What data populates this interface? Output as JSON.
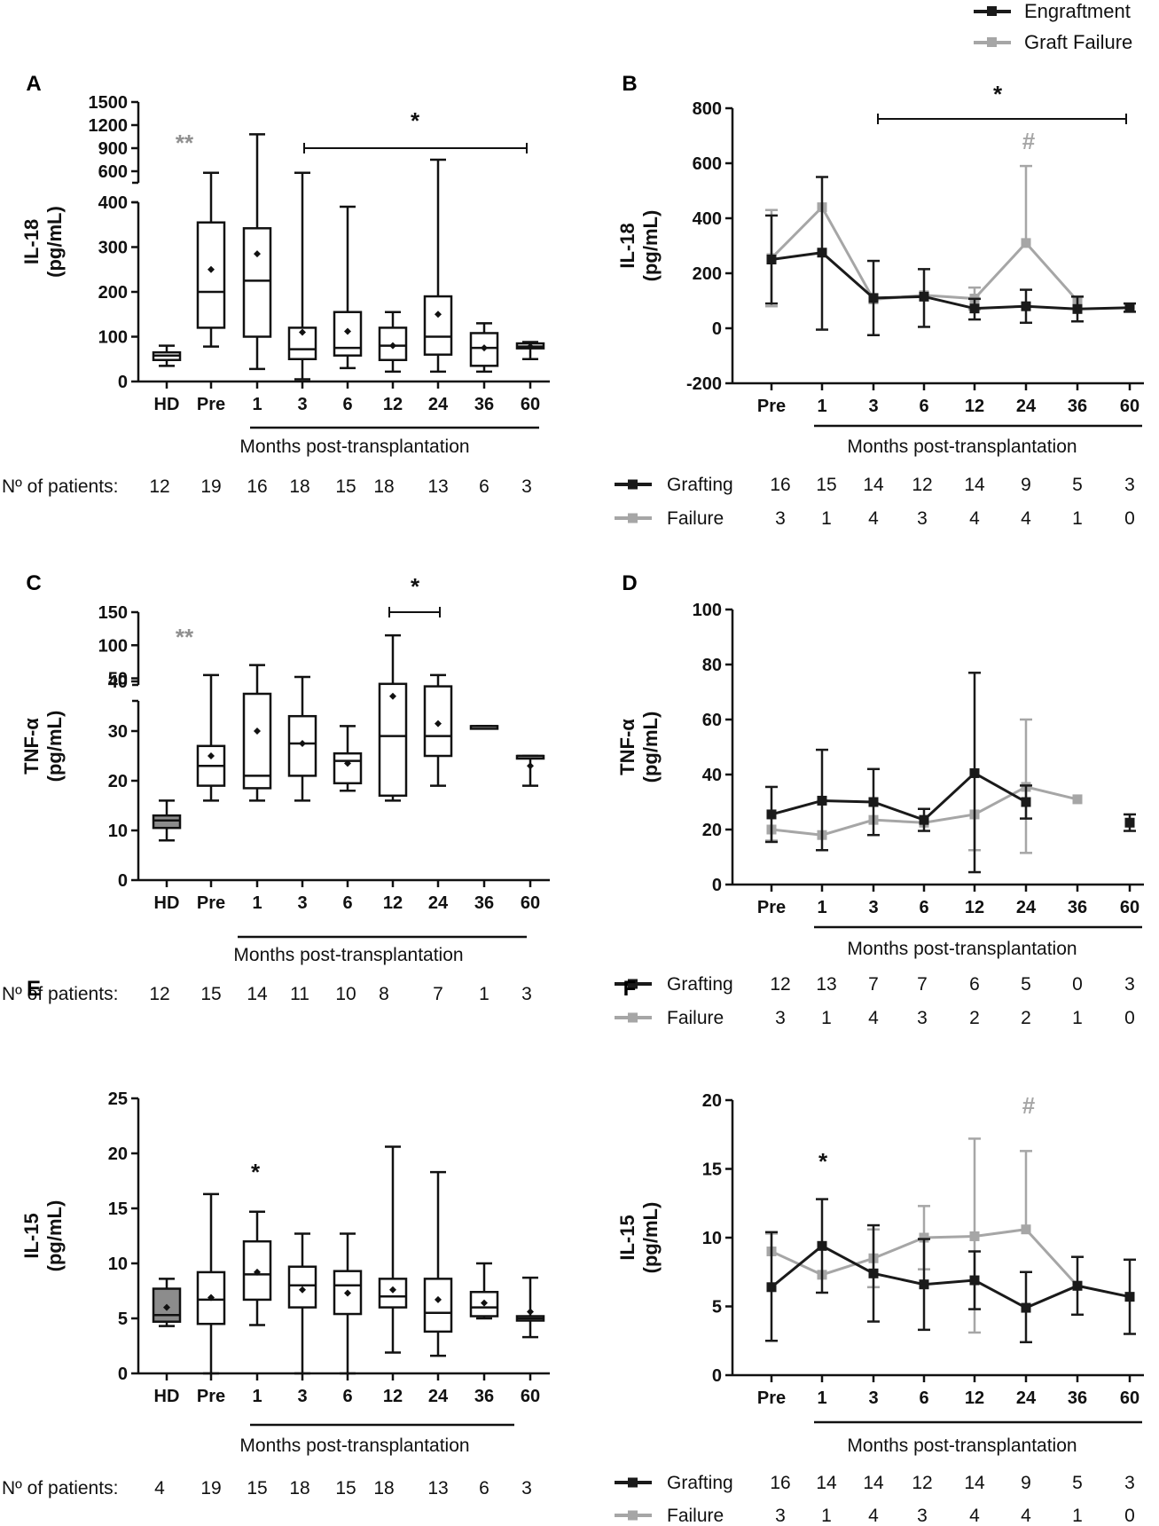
{
  "legend": {
    "engraftment": "Engraftment",
    "graft_failure": "Graft Failure",
    "colors": {
      "engraftment": "#1a1a1a",
      "failure": "#a6a6a6",
      "hd_fill": "#8c8c8c"
    }
  },
  "chart_data": [
    {
      "id": "A",
      "type": "box",
      "panel_label": "A",
      "ylabel_line1": "IL-18",
      "ylabel_line2": "(pg/mL)",
      "yaxis_lower": {
        "range": [
          0,
          400
        ],
        "ticks": [
          "0",
          "100",
          "200",
          "300",
          "400"
        ]
      },
      "yaxis_upper": {
        "ticks": [
          "600",
          "900",
          "1200",
          "1500"
        ]
      },
      "categories": [
        "HD",
        "Pre",
        "1",
        "3",
        "6",
        "12",
        "24",
        "36",
        "60"
      ],
      "boxes": [
        {
          "min": 35,
          "q1": 48,
          "median": 58,
          "q3": 65,
          "max": 80,
          "mean": null,
          "filled": false
        },
        {
          "min": 78,
          "q1": 120,
          "median": 200,
          "q3": 355,
          "max": 580,
          "mean": 250
        },
        {
          "min": 28,
          "q1": 100,
          "median": 225,
          "q3": 342,
          "max": 1080,
          "mean": 285
        },
        {
          "min": 5,
          "q1": 50,
          "median": 72,
          "q3": 120,
          "max": 580,
          "mean": 110
        },
        {
          "min": 30,
          "q1": 58,
          "median": 75,
          "q3": 155,
          "max": 390,
          "mean": 112
        },
        {
          "min": 22,
          "q1": 48,
          "median": 80,
          "q3": 120,
          "max": 155,
          "mean": 80
        },
        {
          "min": 22,
          "q1": 60,
          "median": 100,
          "q3": 190,
          "max": 750,
          "mean": 150
        },
        {
          "min": 22,
          "q1": 35,
          "median": 75,
          "q3": 108,
          "max": 130,
          "mean": 75
        },
        {
          "min": 50,
          "q1": 74,
          "median": 78,
          "q3": 85,
          "max": 88,
          "mean": 78
        }
      ],
      "stars": [
        {
          "text": "**",
          "color": "#909090"
        },
        {
          "text": "*",
          "color": "#111111"
        }
      ],
      "xlabel": "Months post-transplantation",
      "patients_label": "Nº of patients:",
      "patients": [
        "12",
        "19",
        "16",
        "18",
        "15",
        "18",
        "13",
        "6",
        "3"
      ]
    },
    {
      "id": "B",
      "type": "line",
      "panel_label": "B",
      "ylabel_line1": "IL-18",
      "ylabel_line2": "(pg/mL)",
      "ylim": [
        -200,
        800
      ],
      "yticks": [
        "-200",
        "0",
        "200",
        "400",
        "600",
        "800"
      ],
      "categories": [
        "Pre",
        "1",
        "3",
        "6",
        "12",
        "24",
        "36",
        "60"
      ],
      "series": [
        {
          "name": "Grafting",
          "values": [
            250,
            275,
            110,
            115,
            72,
            80,
            70,
            75
          ],
          "err_lo": [
            160,
            280,
            135,
            110,
            40,
            60,
            45,
            15
          ],
          "err_hi": [
            160,
            275,
            135,
            100,
            35,
            60,
            45,
            15
          ]
        },
        {
          "name": "Failure",
          "values": [
            255,
            440,
            105,
            120,
            108,
            310,
            100,
            null
          ],
          "err_lo": [
            175,
            0,
            0,
            0,
            40,
            0,
            0,
            null
          ],
          "err_hi": [
            175,
            0,
            0,
            0,
            40,
            280,
            0,
            null
          ]
        }
      ],
      "stars": [
        {
          "text": "*",
          "color": "#111111"
        },
        {
          "text": "#",
          "color": "#a6a6a6"
        }
      ],
      "xlabel": "Months post-transplantation",
      "counts": [
        {
          "label": "Grafting",
          "values": [
            "16",
            "15",
            "14",
            "12",
            "14",
            "9",
            "5",
            "3"
          ]
        },
        {
          "label": "Failure",
          "values": [
            "3",
            "1",
            "4",
            "3",
            "4",
            "4",
            "1",
            "0"
          ]
        }
      ]
    },
    {
      "id": "C",
      "type": "box",
      "panel_label": "C",
      "ylabel_line1": "TNF-α",
      "ylabel_line2": "(pg/mL)",
      "yaxis_lower": {
        "range": [
          0,
          40
        ],
        "ticks": [
          "0",
          "10",
          "20",
          "30",
          "40"
        ]
      },
      "yaxis_upper": {
        "ticks": [
          "50",
          "100",
          "150"
        ]
      },
      "categories": [
        "HD",
        "Pre",
        "1",
        "3",
        "6",
        "12",
        "24",
        "36",
        "60"
      ],
      "boxes": [
        {
          "min": 8,
          "q1": 10.5,
          "median": 12,
          "q3": 13,
          "max": 16,
          "mean": null,
          "filled": true
        },
        {
          "min": 16,
          "q1": 19,
          "median": 23,
          "q3": 27,
          "max": 55,
          "mean": 25
        },
        {
          "min": 16,
          "q1": 18.5,
          "median": 21,
          "q3": 37.5,
          "max": 70,
          "mean": 30
        },
        {
          "min": 16,
          "q1": 21,
          "median": 27.5,
          "q3": 33,
          "max": 52,
          "mean": 27.5
        },
        {
          "min": 18,
          "q1": 19.5,
          "median": 24,
          "q3": 25.5,
          "max": 31,
          "mean": 23.5
        },
        {
          "min": 16,
          "q1": 17,
          "median": 29,
          "q3": 39.5,
          "max": 115,
          "mean": 37
        },
        {
          "min": 19,
          "q1": 25,
          "median": 29,
          "q3": 39,
          "max": 55,
          "mean": 31.5
        },
        {
          "min": 31,
          "q1": 31,
          "median": 31,
          "q3": 31,
          "max": 31,
          "mean": null
        },
        {
          "min": 19,
          "q1": 25,
          "median": 25,
          "q3": 25,
          "max": 25,
          "mean": 23
        }
      ],
      "stars": [
        {
          "text": "**",
          "color": "#909090"
        },
        {
          "text": "*",
          "color": "#111111"
        }
      ],
      "xlabel": "Months post-transplantation",
      "patients_label": "Nº of patients:",
      "patients": [
        "12",
        "15",
        "14",
        "11",
        "10",
        "8",
        "7",
        "1",
        "3"
      ]
    },
    {
      "id": "D",
      "type": "line",
      "panel_label": "D",
      "ylabel_line1": "TNF-α",
      "ylabel_line2": "(pg/mL)",
      "ylim": [
        0,
        100
      ],
      "yticks": [
        "0",
        "20",
        "40",
        "60",
        "80",
        "100"
      ],
      "categories": [
        "Pre",
        "1",
        "3",
        "6",
        "12",
        "24",
        "36",
        "60"
      ],
      "series": [
        {
          "name": "Grafting",
          "values": [
            25.5,
            30.5,
            30,
            23.5,
            40.5,
            30,
            null,
            22.5
          ],
          "err_lo": [
            10,
            18,
            12,
            4,
            36,
            6,
            null,
            3
          ],
          "err_hi": [
            10,
            18.5,
            12,
            4,
            36.5,
            6,
            null,
            3
          ]
        },
        {
          "name": "Failure",
          "values": [
            20,
            18,
            23.5,
            22.5,
            25.5,
            35.5,
            31,
            null
          ],
          "err_lo": [
            4,
            0,
            0,
            0,
            13,
            24,
            0,
            null
          ],
          "err_hi": [
            0,
            0,
            0,
            0,
            0,
            24.5,
            0,
            null
          ]
        }
      ],
      "stars": [],
      "xlabel": "Months post-transplantation",
      "counts": [
        {
          "label": "Grafting",
          "values": [
            "12",
            "13",
            "7",
            "7",
            "6",
            "5",
            "0",
            "3"
          ]
        },
        {
          "label": "Failure",
          "values": [
            "3",
            "1",
            "4",
            "3",
            "2",
            "2",
            "1",
            "0"
          ]
        }
      ]
    },
    {
      "id": "E",
      "type": "box",
      "panel_label": "E",
      "ylabel_line1": "IL-15",
      "ylabel_line2": "(pg/mL)",
      "ylim": [
        0,
        25
      ],
      "yticks": [
        "0",
        "5",
        "10",
        "15",
        "20",
        "25"
      ],
      "categories": [
        "HD",
        "Pre",
        "1",
        "3",
        "6",
        "12",
        "24",
        "36",
        "60"
      ],
      "boxes": [
        {
          "min": 4.3,
          "q1": 4.7,
          "median": 5.3,
          "q3": 7.7,
          "max": 8.6,
          "mean": 6,
          "filled": true
        },
        {
          "min": 0,
          "q1": 4.5,
          "median": 6.7,
          "q3": 9.2,
          "max": 16.3,
          "mean": 6.9
        },
        {
          "min": 4.4,
          "q1": 6.7,
          "median": 9,
          "q3": 12,
          "max": 14.7,
          "mean": 9.2
        },
        {
          "min": 0,
          "q1": 6,
          "median": 8,
          "q3": 9.7,
          "max": 12.7,
          "mean": 7.6
        },
        {
          "min": 0,
          "q1": 5.4,
          "median": 8,
          "q3": 9.3,
          "max": 12.7,
          "mean": 7.3
        },
        {
          "min": 1.9,
          "q1": 6,
          "median": 7,
          "q3": 8.6,
          "max": 20.6,
          "mean": 7.6
        },
        {
          "min": 1.6,
          "q1": 3.8,
          "median": 5.5,
          "q3": 8.6,
          "max": 18.3,
          "mean": 6.7
        },
        {
          "min": 5,
          "q1": 5.2,
          "median": 6,
          "q3": 7.4,
          "max": 10,
          "mean": 6.4
        },
        {
          "min": 3.3,
          "q1": 4.8,
          "median": 5,
          "q3": 5.2,
          "max": 8.7,
          "mean": 5.6
        }
      ],
      "stars": [
        {
          "text": "*",
          "color": "#111111"
        }
      ],
      "xlabel": "Months post-transplantation",
      "patients_label": "Nº of patients:",
      "patients": [
        "4",
        "19",
        "15",
        "18",
        "15",
        "18",
        "13",
        "6",
        "3"
      ]
    },
    {
      "id": "F",
      "type": "line",
      "panel_label": "F",
      "ylabel_line1": "IL-15",
      "ylabel_line2": "(pg/mL)",
      "ylim": [
        0,
        20
      ],
      "yticks": [
        "0",
        "5",
        "10",
        "15",
        "20"
      ],
      "categories": [
        "Pre",
        "1",
        "3",
        "6",
        "12",
        "24",
        "36",
        "60"
      ],
      "series": [
        {
          "name": "Grafting",
          "values": [
            6.4,
            9.4,
            7.4,
            6.6,
            6.9,
            4.9,
            6.5,
            5.7
          ],
          "err_lo": [
            3.9,
            3.4,
            3.5,
            3.3,
            2.1,
            2.5,
            2.1,
            2.7
          ],
          "err_hi": [
            4,
            3.4,
            3.5,
            3.3,
            2.1,
            2.6,
            2.1,
            2.7
          ]
        },
        {
          "name": "Failure",
          "values": [
            9,
            7.3,
            8.5,
            10,
            10.1,
            10.6,
            6.5,
            null
          ],
          "err_lo": [
            0,
            0,
            2.1,
            2.3,
            7,
            0,
            0,
            null
          ],
          "err_hi": [
            1.3,
            0,
            2.1,
            2.3,
            7.1,
            5.7,
            0,
            null
          ]
        }
      ],
      "stars": [
        {
          "text": "*",
          "color": "#111111"
        },
        {
          "text": "#",
          "color": "#a6a6a6"
        }
      ],
      "xlabel": "Months post-transplantation",
      "counts": [
        {
          "label": "Grafting",
          "values": [
            "16",
            "14",
            "14",
            "12",
            "14",
            "9",
            "5",
            "3"
          ]
        },
        {
          "label": "Failure",
          "values": [
            "3",
            "1",
            "4",
            "3",
            "4",
            "4",
            "1",
            "0"
          ]
        }
      ]
    }
  ]
}
